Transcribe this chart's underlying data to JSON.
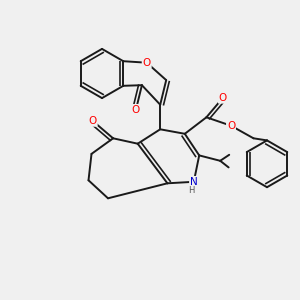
{
  "background_color": "#f0f0f0",
  "bond_color": "#1a1a1a",
  "bond_width": 1.4,
  "atom_colors": {
    "O": "#ff0000",
    "N": "#0000cc",
    "C": "#1a1a1a",
    "H": "#555555"
  },
  "font_size_atom": 7.5,
  "font_size_h": 6.0,
  "fig_size": [
    3.0,
    3.0
  ],
  "dpi": 100
}
